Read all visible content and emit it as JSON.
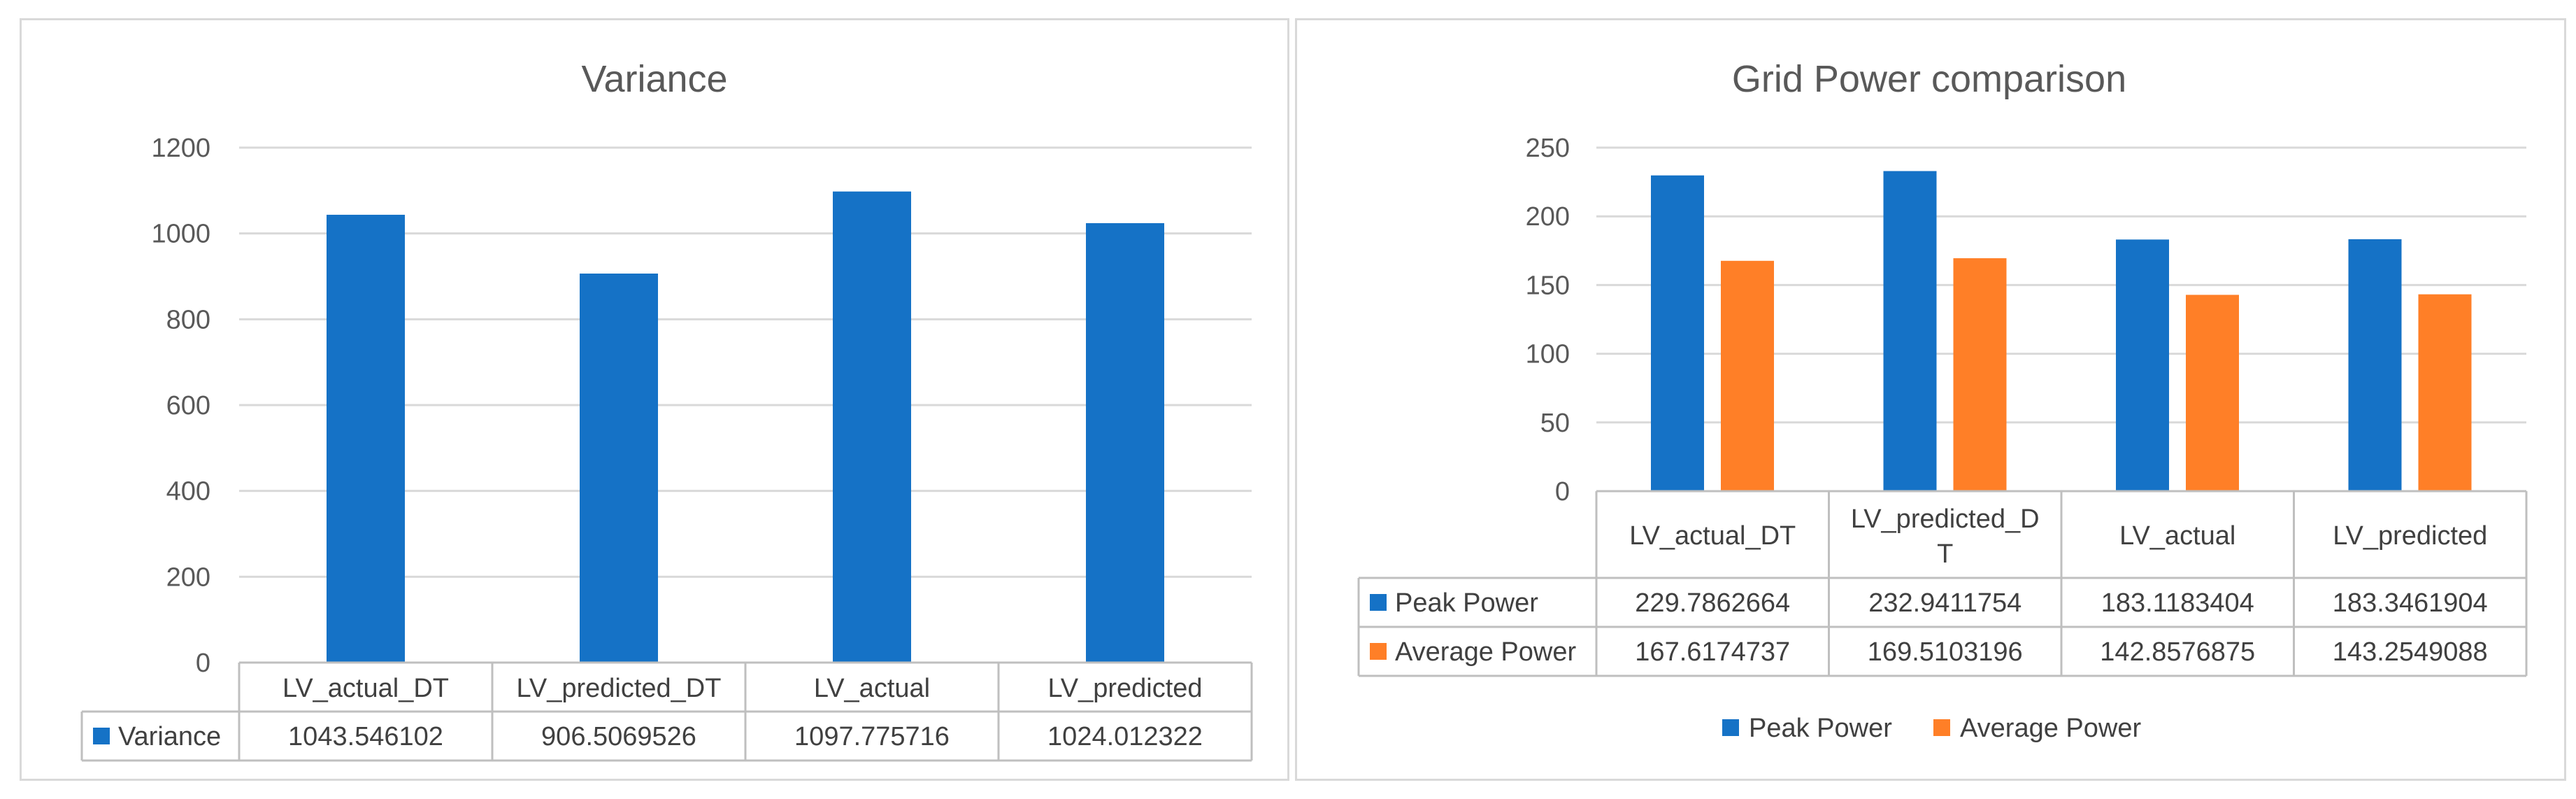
{
  "chart_data": [
    {
      "type": "bar",
      "title": "Variance",
      "categories": [
        "LV_actual_DT",
        "LV_predicted_DT",
        "LV_actual",
        "LV_predicted"
      ],
      "series": [
        {
          "name": "Variance",
          "values": [
            1043.546102,
            906.5069526,
            1097.775716,
            1024.012322
          ],
          "value_labels": [
            "1043.546102",
            "906.5069526",
            "1097.775716",
            "1024.012322"
          ],
          "color": "#1572C6"
        }
      ],
      "ylim": [
        0,
        1200
      ],
      "yticks": [
        0,
        200,
        400,
        600,
        800,
        1000,
        1200
      ],
      "grid": true,
      "data_table": true
    },
    {
      "type": "bar",
      "title": "Grid Power comparison",
      "categories": [
        "LV_actual_DT",
        "LV_predicted_D T",
        "LV_actual",
        "LV_predicted"
      ],
      "series": [
        {
          "name": "Peak Power",
          "values": [
            229.7862664,
            232.9411754,
            183.1183404,
            183.3461904
          ],
          "value_labels": [
            "229.7862664",
            "232.9411754",
            "183.1183404",
            "183.3461904"
          ],
          "color": "#1572C6"
        },
        {
          "name": "Average Power",
          "values": [
            167.6174737,
            169.5103196,
            142.8576875,
            143.2549088
          ],
          "value_labels": [
            "167.6174737",
            "169.5103196",
            "142.8576875",
            "143.2549088"
          ],
          "color": "#FF7F27"
        }
      ],
      "ylim": [
        0,
        250
      ],
      "yticks": [
        0,
        50,
        100,
        150,
        200,
        250
      ],
      "grid": true,
      "legend": "bottom",
      "data_table": true
    }
  ]
}
